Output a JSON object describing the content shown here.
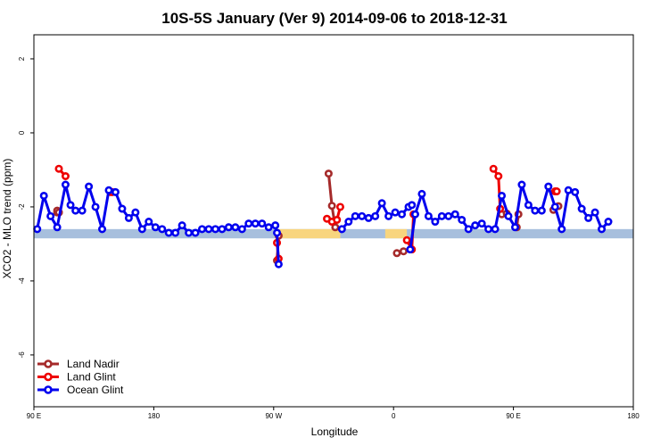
{
  "chart_data": {
    "type": "line",
    "title": "10S-5S January (Ver 9)   2014-09-06 to 2018-12-31",
    "xlabel": "Longitude",
    "ylabel": "XCO2 - MLO trend (ppm)",
    "xlim": [
      90,
      450
    ],
    "ylim": [
      -7.4,
      2.65
    ],
    "x_ticks": [
      {
        "value": 90,
        "label": "90 E"
      },
      {
        "value": 162,
        "label": "180"
      },
      {
        "value": 234,
        "label": "90 W"
      },
      {
        "value": 306,
        "label": "0"
      },
      {
        "value": 378,
        "label": "90 E"
      },
      {
        "value": 450,
        "label": "180"
      }
    ],
    "y_ticks": [
      {
        "value": 2,
        "label": "2"
      },
      {
        "value": 0,
        "label": "0"
      },
      {
        "value": -2,
        "label": "-2"
      },
      {
        "value": -4,
        "label": "-4"
      },
      {
        "value": -6,
        "label": "-6"
      }
    ],
    "grid": false,
    "legend_position": "bottom-left",
    "map_band": {
      "y_top": -2.6,
      "y_bottom": -2.85,
      "ocean_color": "#a7bfdd",
      "land_color": "#f8d57e",
      "land_ranges": [
        [
          235,
          274
        ],
        [
          301,
          314
        ]
      ]
    },
    "series": [
      {
        "name": "Land Nadir",
        "color": "#a52a2a",
        "segments": [
          [
            [
              104,
              -2.15
            ],
            [
              105,
              -2.15
            ]
          ],
          [
            [
              104,
              -2.1
            ],
            [
              105,
              -2.15
            ]
          ],
          [
            [
              237,
              -2.78
            ],
            [
              236,
              -3.45
            ]
          ],
          [
            [
              267,
              -1.1
            ],
            [
              269,
              -1.97
            ],
            [
              271,
              -2.55
            ]
          ],
          [
            [
              308,
              -3.25
            ],
            [
              312,
              -3.2
            ]
          ],
          [
            [
              371,
              -2.2
            ],
            [
              374,
              -2.18
            ]
          ],
          [
            [
              380,
              -2.55
            ],
            [
              381,
              -2.2
            ]
          ],
          [
            [
              402,
              -2.08
            ],
            [
              405,
              -1.98
            ]
          ]
        ]
      },
      {
        "name": "Land Glint",
        "color": "#ee0000",
        "segments": [
          [
            [
              105,
              -0.97
            ],
            [
              109,
              -1.17
            ]
          ],
          [
            [
              136,
              -1.6
            ],
            [
              137,
              -1.6
            ]
          ],
          [
            [
              236,
              -2.97
            ],
            [
              237,
              -3.4
            ]
          ],
          [
            [
              266,
              -2.32
            ],
            [
              269,
              -2.4
            ],
            [
              272,
              -2.35
            ],
            [
              274,
              -2.0
            ]
          ],
          [
            [
              314,
              -2.9
            ],
            [
              317,
              -3.15
            ],
            [
              318,
              -2.2
            ]
          ],
          [
            [
              366,
              -0.97
            ],
            [
              369,
              -1.17
            ],
            [
              370,
              -2.05
            ]
          ],
          [
            [
              403,
              -1.58
            ],
            [
              404,
              -1.58
            ]
          ]
        ]
      },
      {
        "name": "Ocean Glint",
        "color": "#0000ee",
        "segments": [
          [
            [
              92,
              -2.6
            ],
            [
              96,
              -1.7
            ],
            [
              100,
              -2.25
            ],
            [
              104,
              -2.55
            ],
            [
              109,
              -1.4
            ],
            [
              112,
              -1.95
            ],
            [
              115,
              -2.1
            ],
            [
              119,
              -2.1
            ],
            [
              123,
              -1.45
            ],
            [
              127,
              -2.0
            ],
            [
              131,
              -2.6
            ],
            [
              135,
              -1.55
            ],
            [
              139,
              -1.6
            ],
            [
              143,
              -2.05
            ],
            [
              147,
              -2.3
            ],
            [
              151,
              -2.15
            ],
            [
              155,
              -2.6
            ],
            [
              159,
              -2.4
            ],
            [
              163,
              -2.55
            ],
            [
              167,
              -2.6
            ],
            [
              171,
              -2.7
            ],
            [
              175,
              -2.7
            ],
            [
              179,
              -2.5
            ],
            [
              183,
              -2.7
            ],
            [
              187,
              -2.7
            ],
            [
              191,
              -2.6
            ],
            [
              195,
              -2.6
            ],
            [
              199,
              -2.6
            ],
            [
              203,
              -2.6
            ],
            [
              207,
              -2.55
            ],
            [
              211,
              -2.55
            ],
            [
              215,
              -2.6
            ],
            [
              219,
              -2.45
            ],
            [
              223,
              -2.45
            ],
            [
              227,
              -2.45
            ],
            [
              231,
              -2.55
            ],
            [
              235,
              -2.5
            ],
            [
              236,
              -2.7
            ],
            [
              237,
              -3.55
            ]
          ],
          [
            [
              275,
              -2.6
            ],
            [
              279,
              -2.4
            ],
            [
              283,
              -2.25
            ],
            [
              287,
              -2.25
            ],
            [
              291,
              -2.3
            ],
            [
              295,
              -2.25
            ],
            [
              299,
              -1.9
            ],
            [
              303,
              -2.25
            ],
            [
              307,
              -2.15
            ],
            [
              311,
              -2.2
            ],
            [
              315,
              -2.0
            ],
            [
              317,
              -1.95
            ]
          ],
          [
            [
              316,
              -3.15
            ],
            [
              319,
              -2.2
            ],
            [
              323,
              -1.65
            ],
            [
              327,
              -2.25
            ],
            [
              331,
              -2.4
            ],
            [
              335,
              -2.25
            ],
            [
              339,
              -2.25
            ],
            [
              343,
              -2.2
            ],
            [
              347,
              -2.35
            ],
            [
              351,
              -2.6
            ],
            [
              355,
              -2.5
            ],
            [
              359,
              -2.45
            ],
            [
              363,
              -2.6
            ],
            [
              367,
              -2.6
            ],
            [
              371,
              -1.7
            ],
            [
              375,
              -2.25
            ],
            [
              379,
              -2.55
            ],
            [
              383,
              -1.4
            ],
            [
              387,
              -1.95
            ],
            [
              391,
              -2.1
            ],
            [
              395,
              -2.1
            ],
            [
              399,
              -1.45
            ],
            [
              403,
              -2.0
            ],
            [
              407,
              -2.6
            ],
            [
              411,
              -1.55
            ],
            [
              415,
              -1.6
            ],
            [
              419,
              -2.05
            ],
            [
              423,
              -2.3
            ],
            [
              427,
              -2.15
            ],
            [
              431,
              -2.6
            ],
            [
              435,
              -2.4
            ]
          ]
        ]
      }
    ]
  }
}
